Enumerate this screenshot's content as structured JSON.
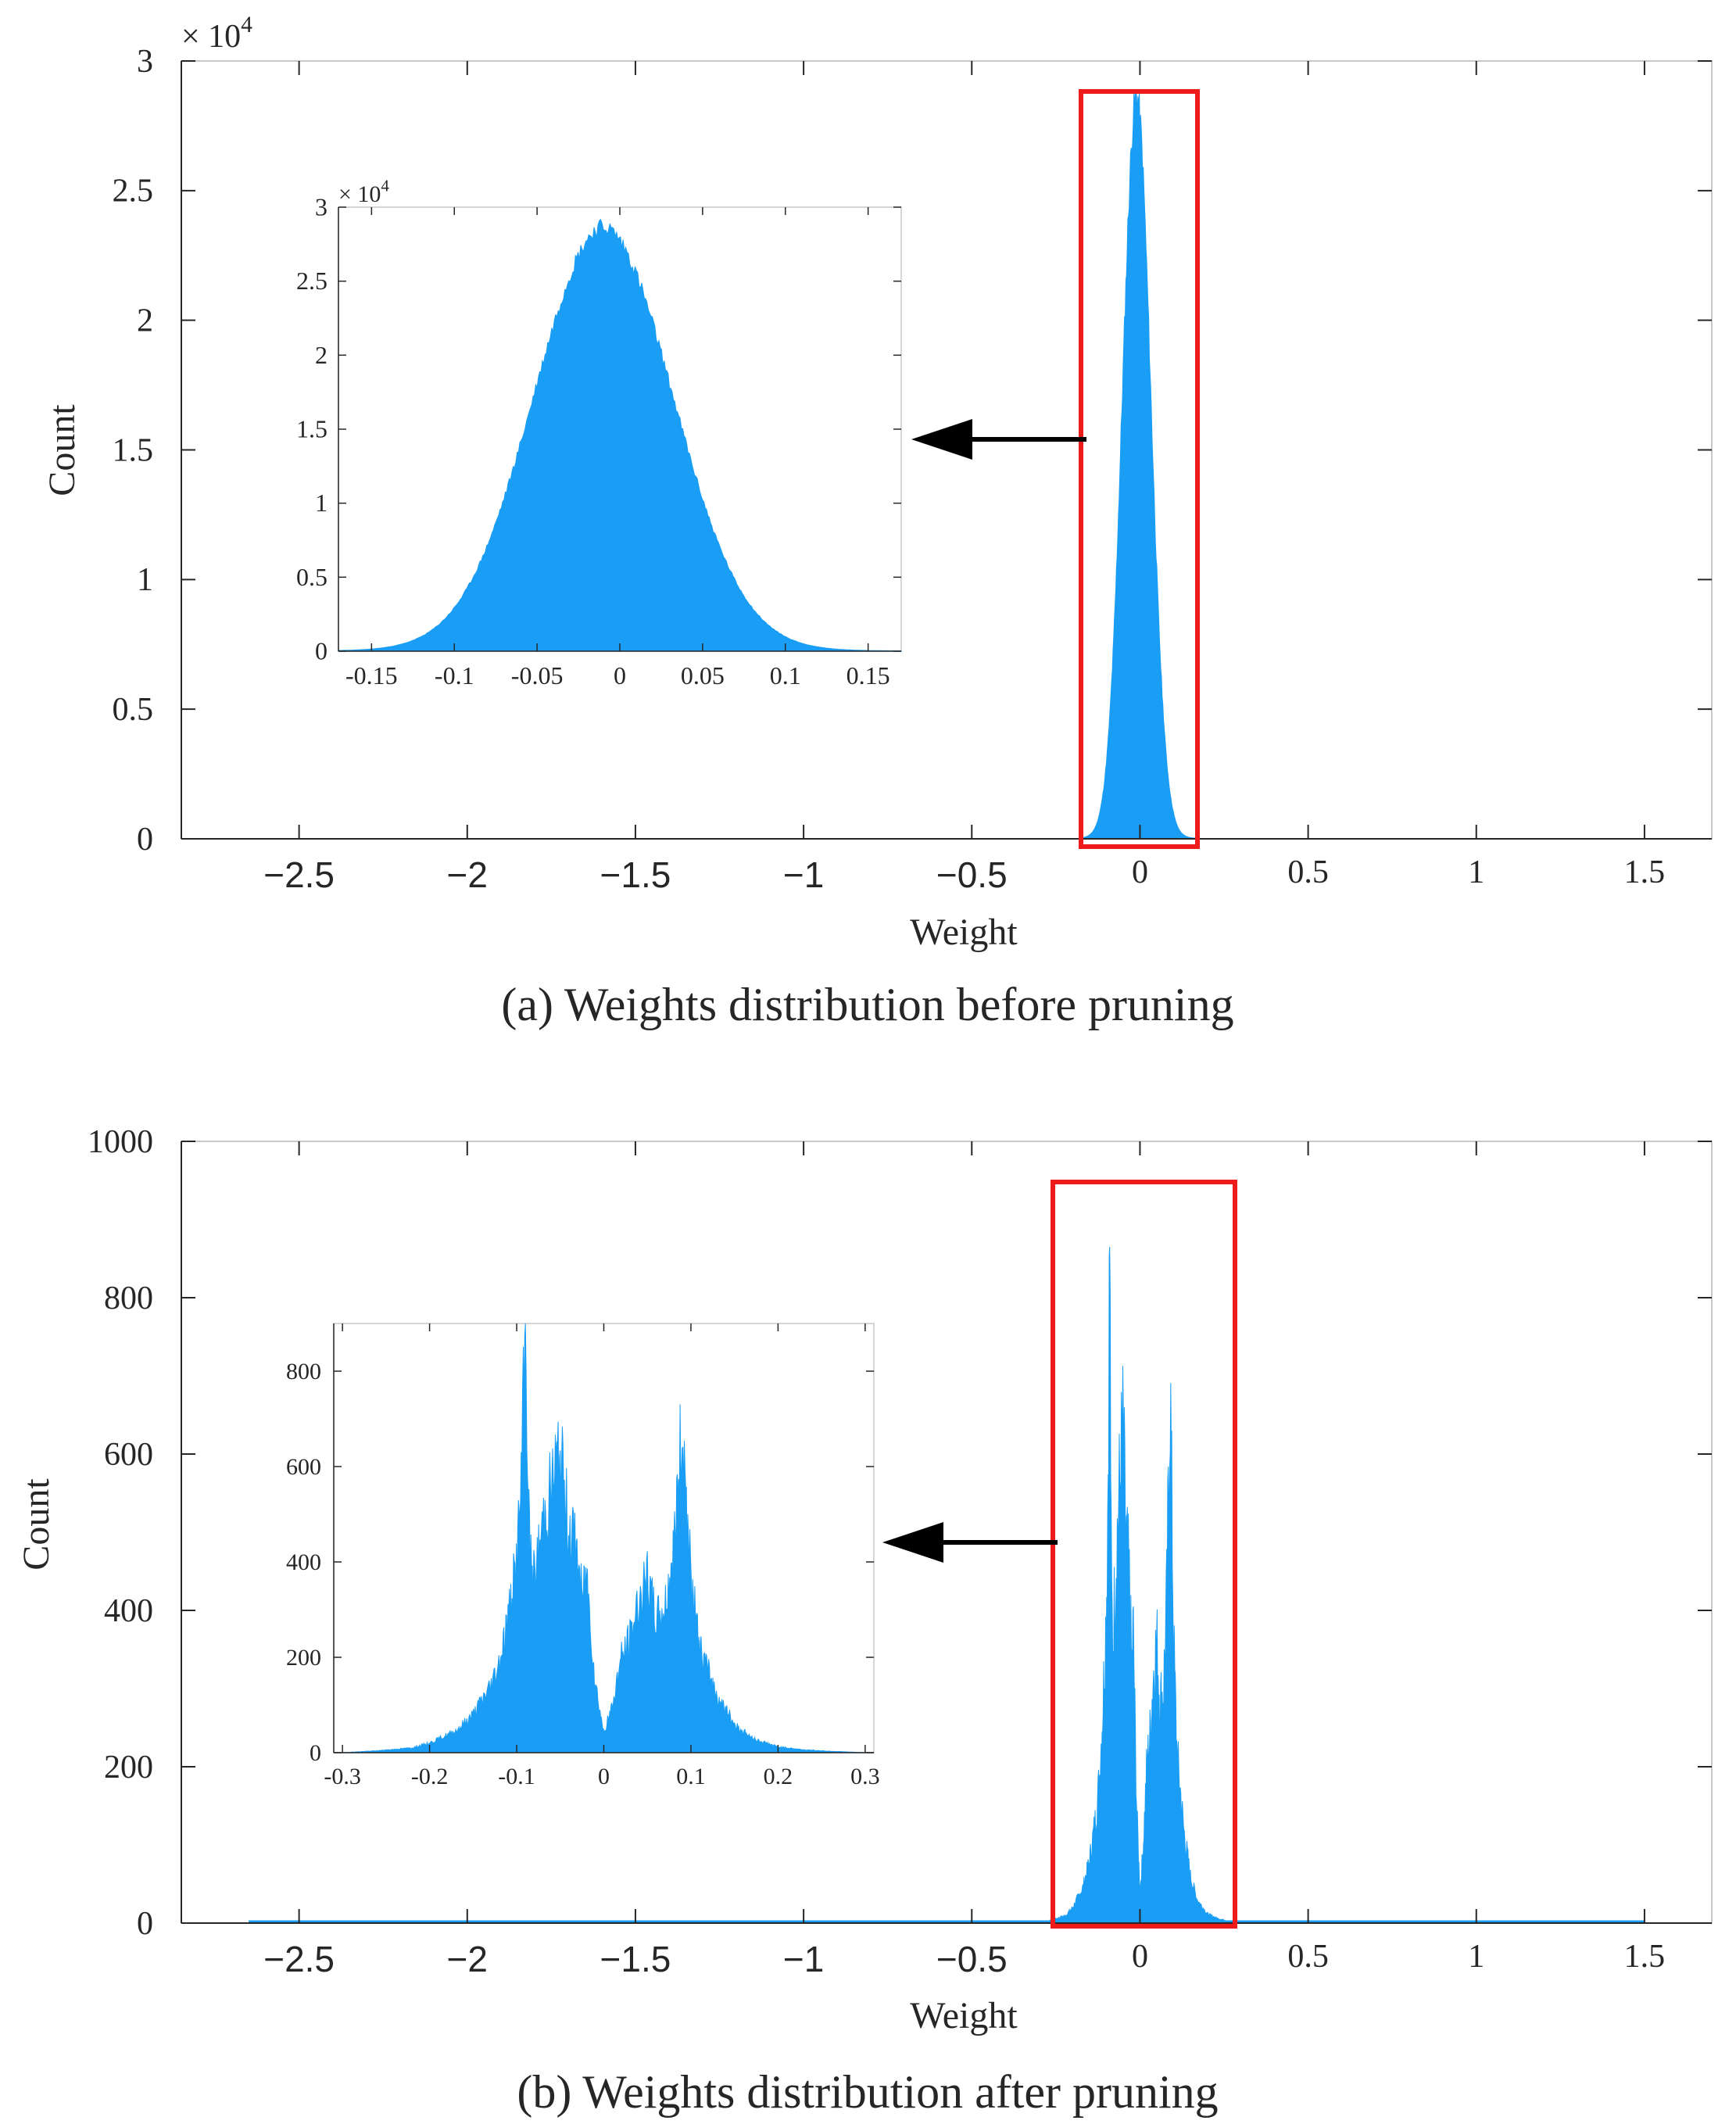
{
  "chart_data": [
    {
      "id": "a",
      "type": "histogram",
      "caption": "(a)  Weights distribution before pruning",
      "xlabel": "Weight",
      "ylabel": "Count",
      "xlim": [
        -2.85,
        1.7
      ],
      "ylim": [
        0,
        30000
      ],
      "y_exponent_label": "× 10",
      "y_exponent_power": "4",
      "xticks": [
        {
          "value": -2.5,
          "label": "−2.5",
          "sans": true
        },
        {
          "value": -2,
          "label": "−2",
          "sans": true
        },
        {
          "value": -1.5,
          "label": "−1.5",
          "sans": true
        },
        {
          "value": -1,
          "label": "−1",
          "sans": true
        },
        {
          "value": -0.5,
          "label": "−0.5",
          "sans": true
        },
        {
          "value": 0,
          "label": "0",
          "sans": false
        },
        {
          "value": 0.5,
          "label": "0.5",
          "sans": false
        },
        {
          "value": 1,
          "label": "1",
          "sans": false
        },
        {
          "value": 1.5,
          "label": "1.5",
          "sans": false
        }
      ],
      "yticks": [
        {
          "value": 0,
          "label": "0"
        },
        {
          "value": 5000,
          "label": "0.5"
        },
        {
          "value": 10000,
          "label": "1"
        },
        {
          "value": 15000,
          "label": "1.5"
        },
        {
          "value": 20000,
          "label": "2"
        },
        {
          "value": 25000,
          "label": "2.5"
        },
        {
          "value": 30000,
          "label": "3"
        }
      ],
      "distribution": {
        "shape": "gaussian",
        "peak_x": -0.01,
        "peak_count": 28000,
        "sigma": 0.042,
        "x_range": [
          -0.17,
          0.17
        ]
      },
      "highlight_range": {
        "x": [
          -0.18,
          0.15
        ],
        "y_top": 28700
      },
      "inset": {
        "xlim": [
          -0.17,
          0.17
        ],
        "ylim": [
          0,
          30000
        ],
        "y_exponent_label": "× 10",
        "y_exponent_power": "4",
        "xticks": [
          {
            "value": -0.15,
            "label": "-0.15"
          },
          {
            "value": -0.1,
            "label": "-0.1"
          },
          {
            "value": -0.05,
            "label": "-0.05"
          },
          {
            "value": 0,
            "label": "0"
          },
          {
            "value": 0.05,
            "label": "0.05"
          },
          {
            "value": 0.1,
            "label": "0.1"
          },
          {
            "value": 0.15,
            "label": "0.15"
          }
        ],
        "yticks": [
          {
            "value": 0,
            "label": "0"
          },
          {
            "value": 5000,
            "label": "0.5"
          },
          {
            "value": 10000,
            "label": "1"
          },
          {
            "value": 15000,
            "label": "1.5"
          },
          {
            "value": 20000,
            "label": "2"
          },
          {
            "value": 25000,
            "label": "2.5"
          },
          {
            "value": 30000,
            "label": "3"
          }
        ]
      }
    },
    {
      "id": "b",
      "type": "histogram",
      "caption": "(b)  Weights distribution after pruning",
      "xlabel": "Weight",
      "ylabel": "Count",
      "xlim": [
        -2.85,
        1.7
      ],
      "ylim": [
        0,
        1000
      ],
      "xticks": [
        {
          "value": -2.5,
          "label": "−2.5",
          "sans": true
        },
        {
          "value": -2,
          "label": "−2",
          "sans": true
        },
        {
          "value": -1.5,
          "label": "−1.5",
          "sans": true
        },
        {
          "value": -1,
          "label": "−1",
          "sans": true
        },
        {
          "value": -0.5,
          "label": "−0.5",
          "sans": true
        },
        {
          "value": 0,
          "label": "0",
          "sans": false
        },
        {
          "value": 0.5,
          "label": "0.5",
          "sans": false
        },
        {
          "value": 1,
          "label": "1",
          "sans": false
        },
        {
          "value": 1.5,
          "label": "1.5",
          "sans": false
        }
      ],
      "yticks": [
        {
          "value": 0,
          "label": "0"
        },
        {
          "value": 200,
          "label": "200"
        },
        {
          "value": 400,
          "label": "400"
        },
        {
          "value": 600,
          "label": "600"
        },
        {
          "value": 800,
          "label": "800"
        },
        {
          "value": 1000,
          "label": "1000"
        }
      ],
      "data_range": [
        -2.65,
        1.5
      ],
      "highlight_range": {
        "x": [
          -0.27,
          0.25
        ],
        "y_top": 945
      },
      "profile": [
        [
          -0.3,
          0
        ],
        [
          -0.26,
          4
        ],
        [
          -0.22,
          10
        ],
        [
          -0.2,
          20
        ],
        [
          -0.17,
          45
        ],
        [
          -0.15,
          80
        ],
        [
          -0.13,
          140
        ],
        [
          -0.12,
          190
        ],
        [
          -0.11,
          280
        ],
        [
          -0.1,
          400
        ],
        [
          -0.095,
          560
        ],
        [
          -0.09,
          880
        ],
        [
          -0.085,
          420
        ],
        [
          -0.08,
          360
        ],
        [
          -0.07,
          480
        ],
        [
          -0.06,
          560
        ],
        [
          -0.055,
          600
        ],
        [
          -0.05,
          630
        ],
        [
          -0.045,
          540
        ],
        [
          -0.04,
          480
        ],
        [
          -0.03,
          420
        ],
        [
          -0.025,
          320
        ],
        [
          -0.02,
          380
        ],
        [
          -0.01,
          150
        ],
        [
          0,
          40
        ],
        [
          0.01,
          100
        ],
        [
          0.02,
          200
        ],
        [
          0.03,
          240
        ],
        [
          0.04,
          320
        ],
        [
          0.05,
          360
        ],
        [
          0.06,
          280
        ],
        [
          0.07,
          300
        ],
        [
          0.08,
          420
        ],
        [
          0.09,
          690
        ],
        [
          0.1,
          360
        ],
        [
          0.11,
          220
        ],
        [
          0.12,
          170
        ],
        [
          0.13,
          120
        ],
        [
          0.15,
          60
        ],
        [
          0.17,
          30
        ],
        [
          0.2,
          12
        ],
        [
          0.23,
          6
        ],
        [
          0.26,
          3
        ],
        [
          0.3,
          0
        ]
      ],
      "inset": {
        "xlim": [
          -0.31,
          0.31
        ],
        "ylim": [
          0,
          900
        ],
        "xticks": [
          {
            "value": -0.3,
            "label": "-0.3"
          },
          {
            "value": -0.2,
            "label": "-0.2"
          },
          {
            "value": -0.1,
            "label": "-0.1"
          },
          {
            "value": 0,
            "label": "0"
          },
          {
            "value": 0.1,
            "label": "0.1"
          },
          {
            "value": 0.2,
            "label": "0.2"
          },
          {
            "value": 0.3,
            "label": "0.3"
          }
        ],
        "yticks": [
          {
            "value": 0,
            "label": "0"
          },
          {
            "value": 200,
            "label": "200"
          },
          {
            "value": 400,
            "label": "400"
          },
          {
            "value": 600,
            "label": "600"
          },
          {
            "value": 800,
            "label": "800"
          }
        ]
      }
    }
  ],
  "colors": {
    "bars": "#1a9ef5",
    "highlight": "#ee1b1b",
    "arrow": "#000000",
    "axis": "#262626",
    "frame": "#c8c8c8"
  }
}
